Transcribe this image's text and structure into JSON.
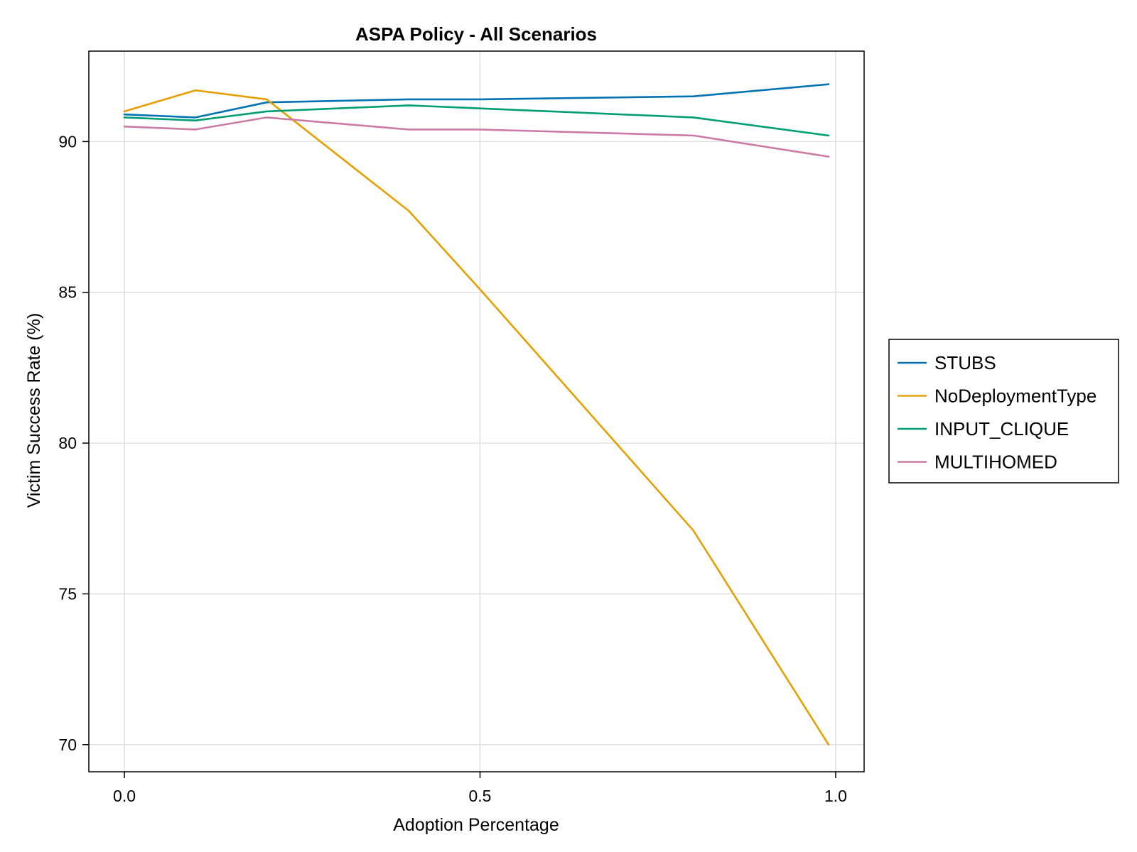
{
  "chart_data": {
    "type": "line",
    "title": "ASPA Policy - All Scenarios",
    "xlabel": "Adoption Percentage",
    "ylabel": "Victim Success Rate (%)",
    "xlim": [
      -0.05,
      1.04
    ],
    "ylim": [
      69.1,
      93.0
    ],
    "xticks": [
      0.0,
      0.5,
      1.0
    ],
    "xtick_labels": [
      "0.0",
      "0.5",
      "1.0"
    ],
    "yticks": [
      70,
      75,
      80,
      85,
      90
    ],
    "ytick_labels": [
      "70",
      "75",
      "80",
      "85",
      "90"
    ],
    "grid": true,
    "legend_position": "right",
    "x": [
      0.0,
      0.1,
      0.2,
      0.4,
      0.5,
      0.8,
      0.99
    ],
    "series": [
      {
        "name": "STUBS",
        "color": "#0072b2",
        "values": [
          90.9,
          90.8,
          91.3,
          91.4,
          91.4,
          91.5,
          91.9
        ]
      },
      {
        "name": "NoDeploymentType",
        "color": "#e69f00",
        "values": [
          91.0,
          91.7,
          91.4,
          87.7,
          85.1,
          77.1,
          70.0
        ]
      },
      {
        "name": "INPUT_CLIQUE",
        "color": "#009e73",
        "values": [
          90.8,
          90.7,
          91.0,
          91.2,
          91.1,
          90.8,
          90.2
        ]
      },
      {
        "name": "MULTIHOMED",
        "color": "#cc79a7",
        "values": [
          90.5,
          90.4,
          90.8,
          90.4,
          90.4,
          90.2,
          89.5
        ]
      }
    ]
  }
}
